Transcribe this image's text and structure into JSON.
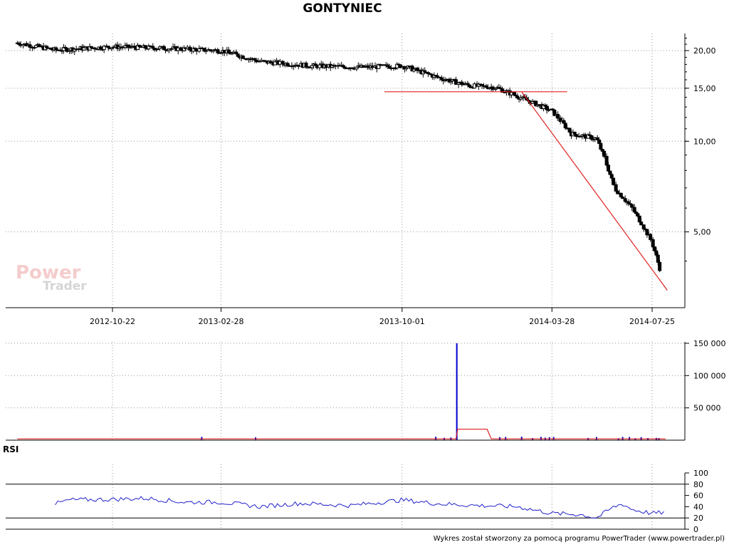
{
  "title": "GONTYNIEC",
  "watermark": {
    "line1": "Power",
    "line2": "Trader"
  },
  "footer": "Wykres został stworzony za pomocą programu PowerTrader (www.powertrader.pl)",
  "rsi_label": "RSI",
  "colors": {
    "candle": "#000000",
    "trendline": "#e02020",
    "volume": "#0000cc",
    "volume_avg": "#e02020",
    "rsi_line": "#2020cc",
    "grid": "#999999"
  },
  "chart_data": [
    {
      "panel": "price",
      "type": "candlestick",
      "x_tick_labels": [
        "2012-10-22",
        "2013-02-28",
        "2013-10-01",
        "2014-03-28",
        "2014-07-25"
      ],
      "y_tick_labels": [
        "20,00",
        "15,00",
        "10,00",
        "5,00"
      ],
      "y_ticks": [
        20,
        15,
        10,
        5
      ],
      "ylim": [
        2.8,
        22.8
      ],
      "grid": true,
      "approx_close_path": [
        [
          "2012-07-01",
          21.2
        ],
        [
          "2012-08-15",
          20.1
        ],
        [
          "2012-10-22",
          20.6
        ],
        [
          "2012-12-15",
          20.4
        ],
        [
          "2013-02-28",
          20.0
        ],
        [
          "2013-04-15",
          18.4
        ],
        [
          "2013-06-15",
          17.8
        ],
        [
          "2013-08-15",
          17.6
        ],
        [
          "2013-10-01",
          17.8
        ],
        [
          "2013-11-15",
          16.2
        ],
        [
          "2013-12-20",
          15.3
        ],
        [
          "2014-01-20",
          15.1
        ],
        [
          "2014-02-15",
          14.1
        ],
        [
          "2014-03-28",
          12.6
        ],
        [
          "2014-04-20",
          10.6
        ],
        [
          "2014-05-20",
          10.2
        ],
        [
          "2014-06-10",
          7.0
        ],
        [
          "2014-07-01",
          6.0
        ],
        [
          "2014-07-25",
          4.6
        ],
        [
          "2014-08-05",
          3.6
        ]
      ],
      "annotations": [
        {
          "type": "horizontal_line",
          "value": 14.6,
          "from": "2013-09-10",
          "to": "2014-04-15"
        },
        {
          "type": "trend_line",
          "from": [
            "2014-02-20",
            14.6
          ],
          "to": [
            "2014-08-12",
            3.2
          ]
        }
      ]
    },
    {
      "panel": "volume",
      "type": "bar",
      "y_tick_labels": [
        "150 000",
        "100 000",
        "50 000"
      ],
      "y_ticks": [
        150000,
        100000,
        50000
      ],
      "ylim": [
        0,
        150000
      ],
      "spike": {
        "date": "2013-12-05",
        "value": 150000
      },
      "average_path": [
        [
          "2012-07-01",
          2000
        ],
        [
          "2013-12-04",
          2000
        ],
        [
          "2013-12-06",
          17000
        ],
        [
          "2014-01-10",
          17000
        ],
        [
          "2014-01-15",
          2000
        ],
        [
          "2014-08-10",
          2000
        ]
      ]
    },
    {
      "panel": "rsi",
      "type": "line",
      "series": [
        {
          "name": "RSI",
          "values": []
        }
      ],
      "y_tick_labels": [
        "100",
        "80",
        "60",
        "40",
        "20",
        "0"
      ],
      "y_ticks": [
        100,
        80,
        60,
        40,
        20,
        0
      ],
      "ylim": [
        0,
        100
      ],
      "levels": [
        80,
        20
      ],
      "approx_path": [
        [
          "2012-08-15",
          45
        ],
        [
          "2012-09-01",
          52
        ],
        [
          "2012-10-22",
          53
        ],
        [
          "2012-12-01",
          55
        ],
        [
          "2013-01-15",
          48
        ],
        [
          "2013-02-28",
          48
        ],
        [
          "2013-04-15",
          40
        ],
        [
          "2013-06-01",
          46
        ],
        [
          "2013-08-01",
          42
        ],
        [
          "2013-10-01",
          52
        ],
        [
          "2013-11-15",
          45
        ],
        [
          "2014-01-01",
          42
        ],
        [
          "2014-02-15",
          40
        ],
        [
          "2014-03-28",
          28
        ],
        [
          "2014-05-01",
          26
        ],
        [
          "2014-05-20",
          20
        ],
        [
          "2014-06-10",
          40
        ],
        [
          "2014-06-20",
          45
        ],
        [
          "2014-07-01",
          35
        ],
        [
          "2014-07-25",
          28
        ],
        [
          "2014-08-10",
          30
        ]
      ]
    }
  ]
}
